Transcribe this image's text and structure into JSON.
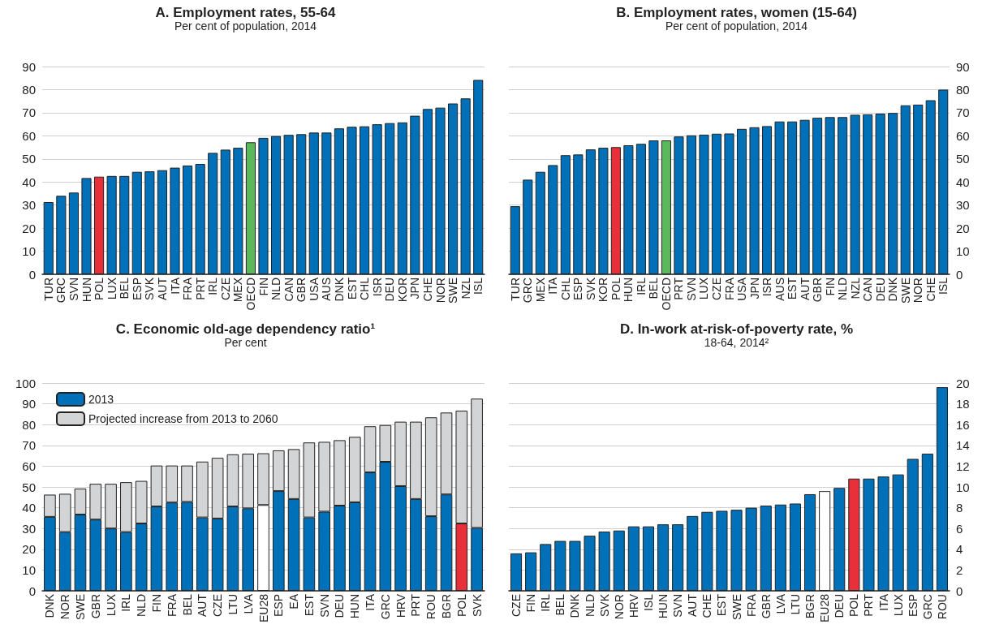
{
  "chart_data": [
    {
      "type": "bar",
      "title": "A. Employment rates, 55-64",
      "subtitle": "Per cent of population, 2014",
      "categories": [
        "TUR",
        "GRC",
        "SVN",
        "HUN",
        "POL",
        "LUX",
        "BEL",
        "ESP",
        "SVK",
        "AUT",
        "ITA",
        "FRA",
        "PRT",
        "IRL",
        "CZE",
        "MEX",
        "OECD",
        "FIN",
        "NLD",
        "CAN",
        "GBR",
        "USA",
        "AUS",
        "DNK",
        "EST",
        "CHL",
        "ISR",
        "DEU",
        "KOR",
        "JPN",
        "CHE",
        "NOR",
        "SWE",
        "NZL",
        "ISL"
      ],
      "values": [
        31.3,
        34,
        35.4,
        41.7,
        42.3,
        42.6,
        42.6,
        44.4,
        44.6,
        45.1,
        46.2,
        47.1,
        47.8,
        52.6,
        54,
        54.8,
        57.2,
        59.1,
        59.9,
        60.4,
        60.7,
        61.4,
        61.4,
        63.2,
        63.9,
        64.1,
        65,
        65.5,
        65.8,
        68.7,
        71.6,
        72.2,
        74,
        76.2,
        84.2
      ],
      "colors": [
        "#0070b8",
        "#0070b8",
        "#0070b8",
        "#0070b8",
        "#e8303a",
        "#0070b8",
        "#0070b8",
        "#0070b8",
        "#0070b8",
        "#0070b8",
        "#0070b8",
        "#0070b8",
        "#0070b8",
        "#0070b8",
        "#0070b8",
        "#0070b8",
        "#5cb85c",
        "#0070b8",
        "#0070b8",
        "#0070b8",
        "#0070b8",
        "#0070b8",
        "#0070b8",
        "#0070b8",
        "#0070b8",
        "#0070b8",
        "#0070b8",
        "#0070b8",
        "#0070b8",
        "#0070b8",
        "#0070b8",
        "#0070b8",
        "#0070b8",
        "#0070b8",
        "#0070b8"
      ],
      "ylim": [
        0,
        90
      ],
      "yticks": [
        0,
        10,
        20,
        30,
        40,
        50,
        60,
        70,
        80,
        90
      ],
      "grid": "y"
    },
    {
      "type": "bar",
      "title": "B. Employment rates, women (15-64)",
      "subtitle": "Per cent of population, 2014",
      "categories": [
        "TUR",
        "GRC",
        "MEX",
        "ITA",
        "CHL",
        "ESP",
        "SVK",
        "KOR",
        "POL",
        "HUN",
        "IRL",
        "BEL",
        "OECD",
        "PRT",
        "SVN",
        "LUX",
        "CZE",
        "FRA",
        "USA",
        "JPN",
        "ISR",
        "AUS",
        "EST",
        "AUT",
        "GBR",
        "FIN",
        "NLD",
        "NZL",
        "CAN",
        "DEU",
        "DNK",
        "SWE",
        "NOR",
        "CHE",
        "ISL"
      ],
      "values": [
        29.5,
        41,
        44.4,
        47.3,
        51.6,
        51.9,
        54.1,
        54.8,
        55.1,
        55.9,
        56.5,
        58,
        58,
        59.7,
        60.2,
        60.5,
        60.9,
        61,
        63,
        63.7,
        64.2,
        66.2,
        66.2,
        66.9,
        67.8,
        68.1,
        68.1,
        69.1,
        69.3,
        69.6,
        69.9,
        73.2,
        73.5,
        75.4,
        80
      ],
      "colors": [
        "#0070b8",
        "#0070b8",
        "#0070b8",
        "#0070b8",
        "#0070b8",
        "#0070b8",
        "#0070b8",
        "#0070b8",
        "#e8303a",
        "#0070b8",
        "#0070b8",
        "#0070b8",
        "#5cb85c",
        "#0070b8",
        "#0070b8",
        "#0070b8",
        "#0070b8",
        "#0070b8",
        "#0070b8",
        "#0070b8",
        "#0070b8",
        "#0070b8",
        "#0070b8",
        "#0070b8",
        "#0070b8",
        "#0070b8",
        "#0070b8",
        "#0070b8",
        "#0070b8",
        "#0070b8",
        "#0070b8",
        "#0070b8",
        "#0070b8",
        "#0070b8",
        "#0070b8"
      ],
      "ylim": [
        0,
        90
      ],
      "yticks": [
        0,
        10,
        20,
        30,
        40,
        50,
        60,
        70,
        80,
        90
      ],
      "grid": "y"
    },
    {
      "type": "bar",
      "title": "C. Economic old-age dependency ratio¹",
      "subtitle": "Per cent",
      "stacked": true,
      "legend": "top left",
      "categories": [
        "DNK",
        "NOR",
        "SWE",
        "GBR",
        "LUX",
        "IRL",
        "NLD",
        "FIN",
        "FRA",
        "BEL",
        "AUT",
        "CZE",
        "LTU",
        "LVA",
        "EU28",
        "ESP",
        "EA",
        "EST",
        "SVN",
        "DEU",
        "HUN",
        "ITA",
        "GRC",
        "HRV",
        "PRT",
        "ROU",
        "BGR",
        "POL",
        "SVK"
      ],
      "series": [
        {
          "name": "2013",
          "color": "#0070b8",
          "values": [
            35.6,
            28.3,
            36.7,
            34.3,
            30,
            28.3,
            32.4,
            40.6,
            42.5,
            42.8,
            35.3,
            34.8,
            40.6,
            39.7,
            41.3,
            48,
            44.2,
            35.3,
            38.1,
            41,
            42.6,
            57,
            62.1,
            50.4,
            44.2,
            35.9,
            46.4,
            32.4,
            30.3
          ],
          "colors": [
            "#0070b8",
            "#0070b8",
            "#0070b8",
            "#0070b8",
            "#0070b8",
            "#0070b8",
            "#0070b8",
            "#0070b8",
            "#0070b8",
            "#0070b8",
            "#0070b8",
            "#0070b8",
            "#0070b8",
            "#0070b8",
            "#ffffff",
            "#0070b8",
            "#0070b8",
            "#0070b8",
            "#0070b8",
            "#0070b8",
            "#0070b8",
            "#0070b8",
            "#0070b8",
            "#0070b8",
            "#0070b8",
            "#0070b8",
            "#0070b8",
            "#e8303a",
            "#0070b8"
          ]
        },
        {
          "name": "Projected increase from 2013 to 2060",
          "color": "#d3d4d6",
          "values": [
            10.7,
            18.4,
            12.5,
            17.2,
            21.5,
            24,
            20.5,
            19.7,
            17.8,
            17.5,
            26.9,
            29.2,
            25.1,
            26.3,
            24.9,
            19.6,
            24,
            36.1,
            33.6,
            31.5,
            31.5,
            22.2,
            17.7,
            31,
            37.2,
            47.6,
            39.4,
            54.3,
            62.2
          ]
        }
      ],
      "ylim": [
        0,
        100
      ],
      "yticks": [
        0,
        10,
        20,
        30,
        40,
        50,
        60,
        70,
        80,
        90,
        100
      ],
      "grid": "y"
    },
    {
      "type": "bar",
      "title": "D. In-work at-risk-of-poverty rate, %",
      "subtitle": "18-64, 2014²",
      "categories": [
        "CZE",
        "FIN",
        "IRL",
        "BEL",
        "DNK",
        "NLD",
        "SVK",
        "NOR",
        "HRV",
        "ISL",
        "HUN",
        "SVN",
        "AUT",
        "CHE",
        "EST",
        "SWE",
        "FRA",
        "GBR",
        "LVA",
        "LTU",
        "BGR",
        "EU28",
        "DEU",
        "POL",
        "PRT",
        "ITA",
        "LUX",
        "ESP",
        "GRC",
        "ROU"
      ],
      "values": [
        3.6,
        3.7,
        4.5,
        4.8,
        4.8,
        5.3,
        5.7,
        5.8,
        6.2,
        6.2,
        6.4,
        6.4,
        7.2,
        7.6,
        7.7,
        7.8,
        8,
        8.2,
        8.3,
        8.4,
        9.3,
        9.6,
        9.9,
        10.8,
        10.8,
        11,
        11.2,
        12.7,
        13.2,
        19.6
      ],
      "colors": [
        "#0070b8",
        "#0070b8",
        "#0070b8",
        "#0070b8",
        "#0070b8",
        "#0070b8",
        "#0070b8",
        "#0070b8",
        "#0070b8",
        "#0070b8",
        "#0070b8",
        "#0070b8",
        "#0070b8",
        "#0070b8",
        "#0070b8",
        "#0070b8",
        "#0070b8",
        "#0070b8",
        "#0070b8",
        "#0070b8",
        "#0070b8",
        "#ffffff",
        "#0070b8",
        "#e8303a",
        "#0070b8",
        "#0070b8",
        "#0070b8",
        "#0070b8",
        "#0070b8",
        "#0070b8"
      ],
      "ylim": [
        0,
        20
      ],
      "yticks": [
        0,
        2,
        4,
        6,
        8,
        10,
        12,
        14,
        16,
        18,
        20
      ],
      "grid": "y"
    }
  ]
}
